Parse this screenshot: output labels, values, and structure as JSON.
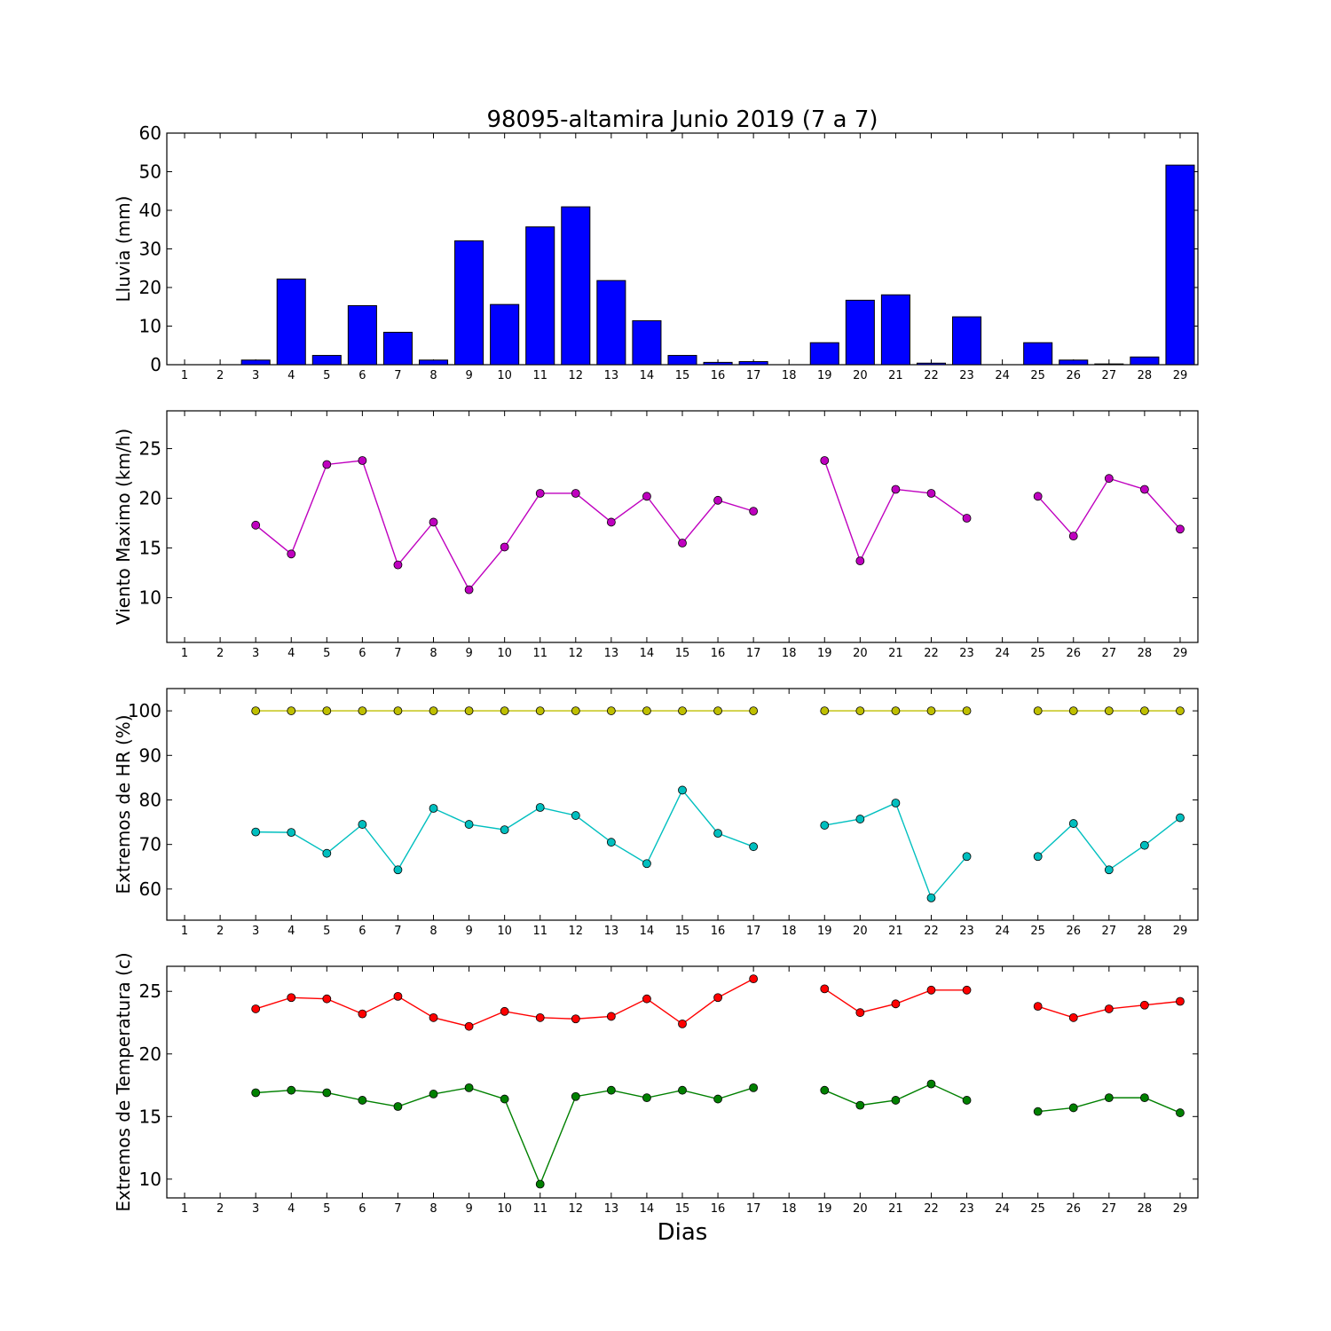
{
  "title": "98095-altamira Junio 2019  (7 a 7)",
  "xlabel": "Dias",
  "days": [
    1,
    2,
    3,
    4,
    5,
    6,
    7,
    8,
    9,
    10,
    11,
    12,
    13,
    14,
    15,
    16,
    17,
    18,
    19,
    20,
    21,
    22,
    23,
    24,
    25,
    26,
    27,
    28,
    29
  ],
  "chart_data": [
    {
      "type": "bar",
      "ylabel": "Lluvia (mm)",
      "ylim": [
        0,
        60
      ],
      "yticks": [
        0,
        10,
        20,
        30,
        40,
        50,
        60
      ],
      "xlim": [
        0.5,
        29.5
      ],
      "series": [
        {
          "color": "#0000ff",
          "values": [
            0,
            0,
            1.2,
            22.2,
            2.4,
            15.3,
            8.4,
            1.2,
            32.1,
            15.6,
            35.7,
            40.9,
            21.8,
            11.4,
            2.4,
            0.6,
            0.8,
            0,
            5.7,
            16.7,
            18.1,
            0.4,
            12.4,
            0,
            5.7,
            1.2,
            0.2,
            2.0,
            51.7
          ]
        }
      ]
    },
    {
      "type": "line",
      "ylabel": "Viento Maximo (km/h)",
      "ylim": [
        5.5,
        28.8
      ],
      "yticks": [
        10,
        15,
        20,
        25
      ],
      "xlim": [
        0.5,
        29.5
      ],
      "series": [
        {
          "color": "#bf00bf",
          "values": [
            null,
            null,
            17.3,
            14.4,
            23.4,
            23.8,
            13.3,
            17.6,
            10.8,
            15.1,
            20.5,
            20.5,
            17.6,
            20.2,
            15.5,
            19.8,
            18.7,
            null,
            23.8,
            13.7,
            20.9,
            20.5,
            18.0,
            null,
            20.2,
            16.2,
            22.0,
            20.9,
            16.9
          ]
        }
      ]
    },
    {
      "type": "line",
      "ylabel": "Extremos de HR (%)",
      "ylim": [
        53,
        105
      ],
      "yticks": [
        60,
        70,
        80,
        90,
        100
      ],
      "xlim": [
        0.5,
        29.5
      ],
      "series": [
        {
          "color": "#bfbf00",
          "values": [
            null,
            null,
            100,
            100,
            100,
            100,
            100,
            100,
            100,
            100,
            100,
            100,
            100,
            100,
            100,
            100,
            100,
            null,
            100,
            100,
            100,
            100,
            100,
            null,
            100,
            100,
            100,
            100,
            100
          ]
        },
        {
          "color": "#00bfbf",
          "values": [
            null,
            null,
            72.8,
            72.7,
            68.0,
            74.5,
            64.3,
            78.1,
            74.5,
            73.3,
            78.3,
            76.5,
            70.5,
            65.7,
            82.2,
            72.5,
            69.5,
            null,
            74.3,
            75.7,
            79.3,
            58.0,
            67.3,
            null,
            67.3,
            74.7,
            64.3,
            69.8,
            76.0
          ]
        }
      ]
    },
    {
      "type": "line",
      "ylabel": "Extremos de Temperatura (c)",
      "ylim": [
        8.5,
        27.0
      ],
      "yticks": [
        10,
        15,
        20,
        25
      ],
      "xlim": [
        0.5,
        29.5
      ],
      "series": [
        {
          "color": "#ff0000",
          "values": [
            null,
            null,
            23.6,
            24.5,
            24.4,
            23.2,
            24.6,
            22.9,
            22.2,
            23.4,
            22.9,
            22.8,
            23.0,
            24.4,
            22.4,
            24.5,
            26.0,
            null,
            25.2,
            23.3,
            24.0,
            25.1,
            25.1,
            null,
            23.8,
            22.9,
            23.6,
            23.9,
            24.2
          ]
        },
        {
          "color": "#008000",
          "values": [
            null,
            null,
            16.9,
            17.1,
            16.9,
            16.3,
            15.8,
            16.8,
            17.3,
            16.4,
            9.6,
            16.6,
            17.1,
            16.5,
            17.1,
            16.4,
            17.3,
            null,
            17.1,
            15.9,
            16.3,
            17.6,
            16.3,
            null,
            15.4,
            15.7,
            16.5,
            16.5,
            15.3
          ]
        }
      ]
    }
  ]
}
